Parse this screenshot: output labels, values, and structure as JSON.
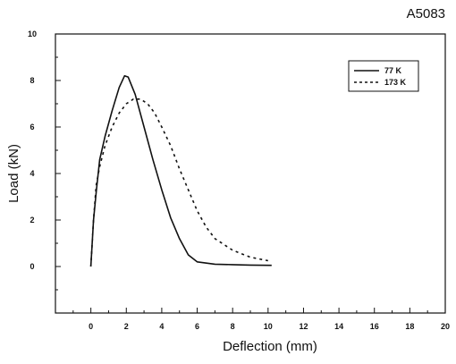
{
  "chart_data": {
    "type": "line",
    "title": "A5083",
    "xlabel": "Deflection (mm)",
    "ylabel": "Load (kN)",
    "xlim": [
      -2,
      20
    ],
    "ylim": [
      -2,
      10
    ],
    "x_ticks": [
      "0",
      "2",
      "4",
      "6",
      "8",
      "10",
      "12",
      "14",
      "16",
      "18",
      "20"
    ],
    "y_ticks": [
      "0",
      "2",
      "4",
      "6",
      "8",
      "10"
    ],
    "grid": false,
    "legend_position": "top-right",
    "series": [
      {
        "name": "77 K",
        "style": "solid",
        "points": [
          [
            0,
            0
          ],
          [
            0.15,
            2.0
          ],
          [
            0.3,
            3.2
          ],
          [
            0.5,
            4.6
          ],
          [
            0.8,
            5.6
          ],
          [
            1.2,
            6.7
          ],
          [
            1.6,
            7.7
          ],
          [
            1.9,
            8.2
          ],
          [
            2.1,
            8.15
          ],
          [
            2.5,
            7.4
          ],
          [
            3.0,
            6.0
          ],
          [
            3.5,
            4.6
          ],
          [
            4.0,
            3.3
          ],
          [
            4.5,
            2.1
          ],
          [
            5.0,
            1.2
          ],
          [
            5.5,
            0.5
          ],
          [
            6.0,
            0.2
          ],
          [
            7.0,
            0.1
          ],
          [
            8.0,
            0.08
          ],
          [
            9.0,
            0.06
          ],
          [
            10.2,
            0.05
          ]
        ]
      },
      {
        "name": "173 K",
        "style": "dashed",
        "points": [
          [
            0,
            0
          ],
          [
            0.15,
            2.0
          ],
          [
            0.3,
            3.5
          ],
          [
            0.5,
            4.3
          ],
          [
            0.8,
            5.2
          ],
          [
            1.2,
            6.0
          ],
          [
            1.6,
            6.6
          ],
          [
            2.0,
            7.0
          ],
          [
            2.4,
            7.2
          ],
          [
            2.8,
            7.2
          ],
          [
            3.2,
            7.0
          ],
          [
            3.6,
            6.6
          ],
          [
            4.0,
            6.0
          ],
          [
            4.5,
            5.2
          ],
          [
            5.0,
            4.2
          ],
          [
            5.5,
            3.3
          ],
          [
            6.0,
            2.4
          ],
          [
            6.5,
            1.7
          ],
          [
            7.0,
            1.2
          ],
          [
            8.0,
            0.7
          ],
          [
            9.0,
            0.4
          ],
          [
            10.0,
            0.25
          ]
        ]
      }
    ]
  }
}
